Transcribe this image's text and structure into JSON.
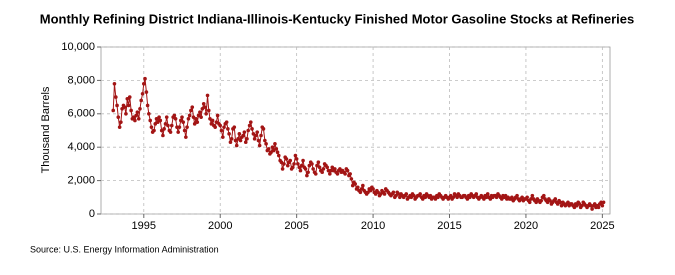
{
  "chart_data": {
    "type": "line",
    "title": "Monthly Refining District Indiana-Illinois-Kentucky Finished Motor Gasoline Stocks at Refineries",
    "ylabel": "Thousand Barrels",
    "source": "Source: U.S. Energy Information Administration",
    "color": "#a31515",
    "grid": true,
    "xlim": [
      1992.2,
      2025.5
    ],
    "xticks": [
      1995,
      2000,
      2005,
      2010,
      2015,
      2020,
      2025
    ],
    "ylim": [
      0,
      10000
    ],
    "yticks": [
      0,
      {
        "value": 2000,
        "label": "2,000"
      },
      {
        "value": 4000,
        "label": "4,000"
      },
      {
        "value": 6000,
        "label": "6,000"
      },
      {
        "value": 8000,
        "label": "8,000"
      },
      {
        "value": 10000,
        "label": "10,000"
      }
    ],
    "x": [
      1993.0,
      1993.08,
      1993.17,
      1993.25,
      1993.33,
      1993.42,
      1993.5,
      1993.58,
      1993.67,
      1993.75,
      1993.83,
      1993.92,
      1994.0,
      1994.08,
      1994.17,
      1994.25,
      1994.33,
      1994.42,
      1994.5,
      1994.58,
      1994.67,
      1994.75,
      1994.83,
      1994.92,
      1995.0,
      1995.08,
      1995.17,
      1995.25,
      1995.33,
      1995.42,
      1995.5,
      1995.58,
      1995.67,
      1995.75,
      1995.83,
      1995.92,
      1996.0,
      1996.08,
      1996.17,
      1996.25,
      1996.33,
      1996.42,
      1996.5,
      1996.58,
      1996.67,
      1996.75,
      1996.83,
      1996.92,
      1997.0,
      1997.08,
      1997.17,
      1997.25,
      1997.33,
      1997.42,
      1997.5,
      1997.58,
      1997.67,
      1997.75,
      1997.83,
      1997.92,
      1998.0,
      1998.08,
      1998.17,
      1998.25,
      1998.33,
      1998.42,
      1998.5,
      1998.58,
      1998.67,
      1998.75,
      1998.83,
      1998.92,
      1999.0,
      1999.08,
      1999.17,
      1999.25,
      1999.33,
      1999.42,
      1999.5,
      1999.58,
      1999.67,
      1999.75,
      1999.83,
      1999.92,
      2000.0,
      2000.08,
      2000.17,
      2000.25,
      2000.33,
      2000.42,
      2000.5,
      2000.58,
      2000.67,
      2000.75,
      2000.83,
      2000.92,
      2001.0,
      2001.08,
      2001.17,
      2001.25,
      2001.33,
      2001.42,
      2001.5,
      2001.58,
      2001.67,
      2001.75,
      2001.83,
      2001.92,
      2002.0,
      2002.08,
      2002.17,
      2002.25,
      2002.33,
      2002.42,
      2002.5,
      2002.58,
      2002.67,
      2002.75,
      2002.83,
      2002.92,
      2003.0,
      2003.08,
      2003.17,
      2003.25,
      2003.33,
      2003.42,
      2003.5,
      2003.58,
      2003.67,
      2003.75,
      2003.83,
      2003.92,
      2004.0,
      2004.08,
      2004.17,
      2004.25,
      2004.33,
      2004.42,
      2004.5,
      2004.58,
      2004.67,
      2004.75,
      2004.83,
      2004.92,
      2005.0,
      2005.08,
      2005.17,
      2005.25,
      2005.33,
      2005.42,
      2005.5,
      2005.58,
      2005.67,
      2005.75,
      2005.83,
      2005.92,
      2006.0,
      2006.08,
      2006.17,
      2006.25,
      2006.33,
      2006.42,
      2006.5,
      2006.58,
      2006.67,
      2006.75,
      2006.83,
      2006.92,
      2007.0,
      2007.08,
      2007.17,
      2007.25,
      2007.33,
      2007.42,
      2007.5,
      2007.58,
      2007.67,
      2007.75,
      2007.83,
      2007.92,
      2008.0,
      2008.08,
      2008.17,
      2008.25,
      2008.33,
      2008.42,
      2008.5,
      2008.58,
      2008.67,
      2008.75,
      2008.83,
      2008.92,
      2009.0,
      2009.08,
      2009.17,
      2009.25,
      2009.33,
      2009.42,
      2009.5,
      2009.58,
      2009.67,
      2009.75,
      2009.83,
      2009.92,
      2010.0,
      2010.08,
      2010.17,
      2010.25,
      2010.33,
      2010.42,
      2010.5,
      2010.58,
      2010.67,
      2010.75,
      2010.83,
      2010.92,
      2011.0,
      2011.08,
      2011.17,
      2011.25,
      2011.33,
      2011.42,
      2011.5,
      2011.58,
      2011.67,
      2011.75,
      2011.83,
      2011.92,
      2012.0,
      2012.08,
      2012.17,
      2012.25,
      2012.33,
      2012.42,
      2012.5,
      2012.58,
      2012.67,
      2012.75,
      2012.83,
      2012.92,
      2013.0,
      2013.08,
      2013.17,
      2013.25,
      2013.33,
      2013.42,
      2013.5,
      2013.58,
      2013.67,
      2013.75,
      2013.83,
      2013.92,
      2014.0,
      2014.08,
      2014.17,
      2014.25,
      2014.33,
      2014.42,
      2014.5,
      2014.58,
      2014.67,
      2014.75,
      2014.83,
      2014.92,
      2015.0,
      2015.08,
      2015.17,
      2015.25,
      2015.33,
      2015.42,
      2015.5,
      2015.58,
      2015.67,
      2015.75,
      2015.83,
      2015.92,
      2016.0,
      2016.08,
      2016.17,
      2016.25,
      2016.33,
      2016.42,
      2016.5,
      2016.58,
      2016.67,
      2016.75,
      2016.83,
      2016.92,
      2017.0,
      2017.08,
      2017.17,
      2017.25,
      2017.33,
      2017.42,
      2017.5,
      2017.58,
      2017.67,
      2017.75,
      2017.83,
      2017.92,
      2018.0,
      2018.08,
      2018.17,
      2018.25,
      2018.33,
      2018.42,
      2018.5,
      2018.58,
      2018.67,
      2018.75,
      2018.83,
      2018.92,
      2019.0,
      2019.08,
      2019.17,
      2019.25,
      2019.33,
      2019.42,
      2019.5,
      2019.58,
      2019.67,
      2019.75,
      2019.83,
      2019.92,
      2020.0,
      2020.08,
      2020.17,
      2020.25,
      2020.33,
      2020.42,
      2020.5,
      2020.58,
      2020.67,
      2020.75,
      2020.83,
      2020.92,
      2021.0,
      2021.08,
      2021.17,
      2021.25,
      2021.33,
      2021.42,
      2021.5,
      2021.58,
      2021.67,
      2021.75,
      2021.83,
      2021.92,
      2022.0,
      2022.08,
      2022.17,
      2022.25,
      2022.33,
      2022.42,
      2022.5,
      2022.58,
      2022.67,
      2022.75,
      2022.83,
      2022.92,
      2023.0,
      2023.08,
      2023.17,
      2023.25,
      2023.33,
      2023.42,
      2023.5,
      2023.58,
      2023.67,
      2023.75,
      2023.83,
      2023.92,
      2024.0,
      2024.08,
      2024.17,
      2024.25,
      2024.33,
      2024.42,
      2024.5,
      2024.58,
      2024.67,
      2024.75,
      2024.83,
      2024.92,
      2025.0,
      2025.08
    ],
    "values": [
      6200,
      7800,
      7000,
      6500,
      5800,
      5200,
      5500,
      6300,
      6500,
      6400,
      6000,
      6900,
      6500,
      7000,
      6200,
      5700,
      5800,
      5600,
      5900,
      6100,
      5700,
      6300,
      6800,
      7200,
      7800,
      8100,
      7300,
      6500,
      6000,
      5600,
      5200,
      4900,
      5000,
      5400,
      5700,
      5500,
      5800,
      5600,
      5000,
      4700,
      5100,
      5400,
      5800,
      5300,
      5000,
      4900,
      5300,
      5800,
      5900,
      5700,
      5200,
      4900,
      5200,
      5600,
      5800,
      5500,
      5000,
      4600,
      5200,
      5700,
      5900,
      6200,
      6400,
      5800,
      5400,
      5700,
      5500,
      5900,
      6100,
      5800,
      6300,
      6600,
      6400,
      6000,
      7100,
      6200,
      5700,
      5400,
      5600,
      5300,
      5200,
      5500,
      5900,
      5400,
      5300,
      5000,
      4600,
      5200,
      5400,
      5500,
      5100,
      4800,
      4300,
      4500,
      5100,
      5200,
      4400,
      4100,
      4500,
      4800,
      4400,
      4600,
      4700,
      4900,
      4300,
      4500,
      5000,
      5300,
      5500,
      5100,
      4800,
      4500,
      4700,
      4900,
      4400,
      4100,
      4700,
      5200,
      5100,
      4400,
      4200,
      3800,
      3900,
      3600,
      3700,
      4000,
      3800,
      4200,
      3900,
      3700,
      3500,
      3200,
      3100,
      2700,
      3000,
      3400,
      3300,
      2900,
      3100,
      3200,
      2700,
      2800,
      3000,
      3500,
      3300,
      3000,
      2800,
      2600,
      2900,
      3200,
      2800,
      2700,
      2300,
      2500,
      2900,
      3100,
      3000,
      2700,
      2500,
      2400,
      2900,
      3100,
      2800,
      2600,
      2500,
      2700,
      3000,
      2900,
      2800,
      2600,
      2400,
      2600,
      2800,
      2600,
      2700,
      2500,
      2400,
      2600,
      2700,
      2500,
      2600,
      2500,
      2400,
      2700,
      2600,
      2300,
      2400,
      2100,
      1700,
      1900,
      1800,
      1500,
      1600,
      1400,
      1300,
      1500,
      1700,
      1400,
      1300,
      1200,
      1300,
      1500,
      1400,
      1600,
      1500,
      1300,
      1200,
      1400,
      1300,
      1100,
      1200,
      1400,
      1300,
      1200,
      1500,
      1400,
      1300,
      1200,
      1100,
      1200,
      1300,
      1000,
      1100,
      1300,
      1200,
      1000,
      1200,
      1100,
      1000,
      1100,
      1200,
      900,
      1000,
      1100,
      1000,
      1200,
      1100,
      900,
      1000,
      1100,
      1100,
      1200,
      1000,
      900,
      1100,
      1000,
      1200,
      1100,
      1000,
      1100,
      900,
      1000,
      1000,
      900,
      1100,
      1000,
      1200,
      1100,
      1000,
      900,
      1000,
      1100,
      1000,
      900,
      1000,
      1100,
      900,
      1000,
      1200,
      1100,
      1000,
      1200,
      1100,
      1000,
      1000,
      1100,
      1100,
      1000,
      900,
      1100,
      1000,
      1200,
      1100,
      1000,
      1100,
      1200,
      1000,
      900,
      1000,
      1100,
      1000,
      900,
      1100,
      1000,
      1200,
      1000,
      900,
      1100,
      1000,
      1100,
      1100,
      1000,
      1200,
      1100,
      1000,
      900,
      1100,
      1000,
      1100,
      900,
      1000,
      900,
      900,
      1000,
      800,
      900,
      1000,
      1100,
      900,
      800,
      900,
      1000,
      800,
      900,
      900,
      1000,
      800,
      700,
      900,
      1100,
      900,
      800,
      700,
      900,
      800,
      700,
      800,
      1000,
      1100,
      900,
      800,
      700,
      900,
      800,
      600,
      700,
      800,
      900,
      700,
      600,
      800,
      700,
      500,
      700,
      600,
      500,
      600,
      700,
      500,
      600,
      600,
      500,
      400,
      600,
      500,
      700,
      600,
      400,
      500,
      700,
      600,
      500,
      400,
      500,
      600,
      500,
      300,
      500,
      600,
      400,
      500,
      400,
      600,
      700,
      500,
      700
    ]
  }
}
